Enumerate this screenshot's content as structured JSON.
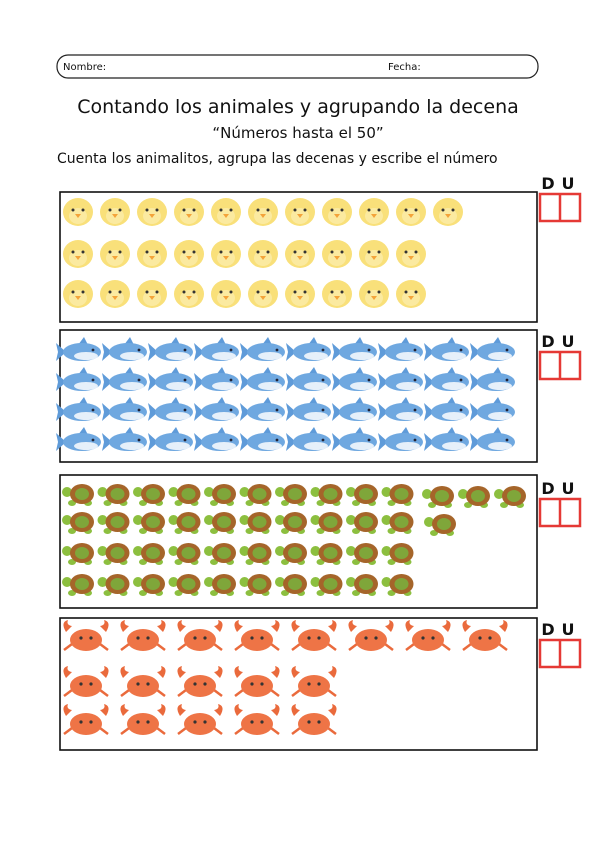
{
  "header": {
    "name_label": "Nombre:",
    "date_label": "Fecha:"
  },
  "title": "Contando los animales y agrupando la decena",
  "subtitle": "“Números hasta el 50”",
  "instruction": "Cuenta los animalitos, agrupa las decenas  y escribe el número",
  "answer_boxes": [
    {
      "tens": "D",
      "units": "U"
    },
    {
      "tens": "D",
      "units": "U"
    },
    {
      "tens": "D",
      "units": "U"
    },
    {
      "tens": "D",
      "units": "U"
    }
  ]
}
